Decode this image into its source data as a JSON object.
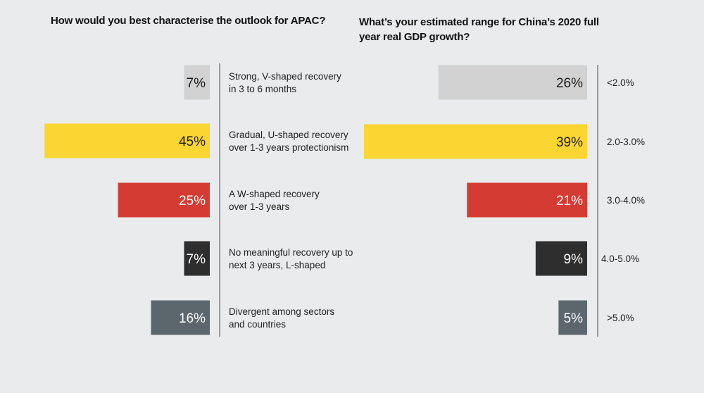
{
  "chart_data": [
    {
      "type": "bar",
      "orientation": "horizontal",
      "title": "How would you best characterise the outlook for APAC?",
      "categories": [
        "Strong, V-shaped recovery\nin 3 to 6 months",
        "Gradual, U-shaped recovery\nover 1-3 years protectionism",
        "A W-shaped recovery\nover 1-3 years",
        "No meaningful recovery up to\nnext 3 years, L-shaped",
        "Divergent among sectors\nand countries"
      ],
      "values": [
        7,
        45,
        25,
        7,
        16
      ],
      "data_labels": [
        "7%",
        "45%",
        "25%",
        "7%",
        "16%"
      ],
      "colors": [
        "#d1d2d1",
        "#fbd531",
        "#d43c33",
        "#2e2e2e",
        "#5b676d"
      ],
      "label_colors": [
        "#1a1a1a",
        "#1a1a1a",
        "#ffffff",
        "#ffffff",
        "#ffffff"
      ],
      "xlim": [
        0,
        46
      ],
      "axis": "right",
      "legend": "none",
      "grid": false
    },
    {
      "type": "bar",
      "orientation": "horizontal",
      "title": "What’s your estimated range for China’s 2020 full year real GDP growth?",
      "categories": [
        "<2.0%",
        "2.0-3.0%",
        "3.0-4.0%",
        "4.0-5.0%",
        ">5.0%"
      ],
      "values": [
        26,
        39,
        21,
        9,
        5
      ],
      "data_labels": [
        "26%",
        "39%",
        "21%",
        "9%",
        "5%"
      ],
      "colors": [
        "#d1d2d1",
        "#fbd531",
        "#d43c33",
        "#2e2e2e",
        "#5b676d"
      ],
      "label_colors": [
        "#1a1a1a",
        "#1a1a1a",
        "#ffffff",
        "#ffffff",
        "#ffffff"
      ],
      "xlim": [
        0,
        39
      ],
      "axis": "right",
      "legend": "none",
      "grid": false
    }
  ]
}
